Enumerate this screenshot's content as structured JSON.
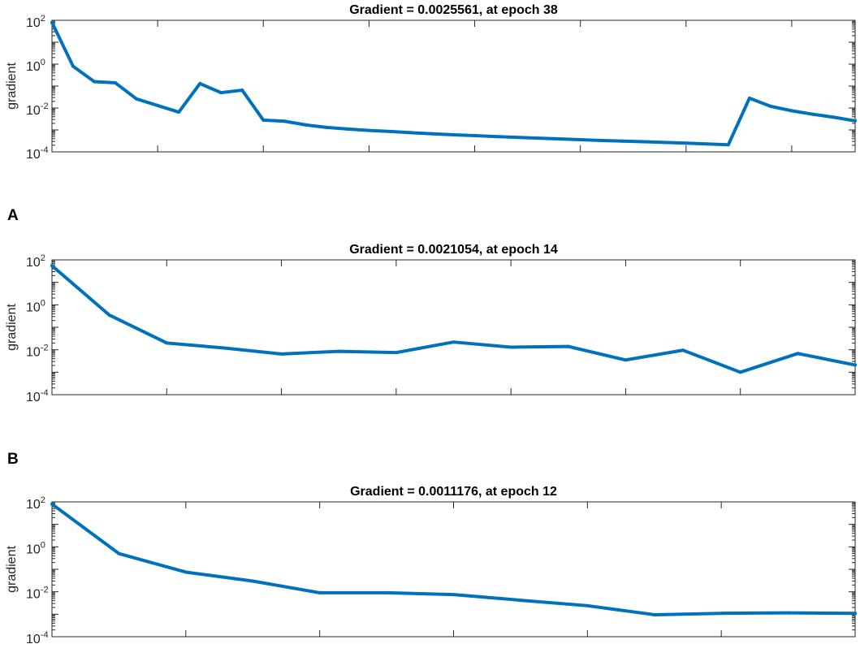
{
  "panel_labels": [
    "A",
    "B"
  ],
  "colors": {
    "line": "#0072bd",
    "axis": "#262626",
    "background": "#ffffff"
  },
  "chart_data": [
    {
      "type": "line",
      "title": "Gradient = 0.0025561, at epoch 38",
      "xlabel": "",
      "ylabel": "gradient",
      "y_scale": "log",
      "xlim": [
        0,
        38
      ],
      "ylim": [
        0.0001,
        100
      ],
      "yticks": [
        {
          "base": "10",
          "exp": "2"
        },
        {
          "base": "10",
          "exp": "0"
        },
        {
          "base": "10",
          "exp": "-2"
        },
        {
          "base": "10",
          "exp": "-4"
        }
      ],
      "x_major_ticks": [
        0,
        5,
        10,
        15,
        20,
        25,
        30,
        35
      ],
      "grid": false,
      "series": [
        {
          "x": [
            0,
            1,
            2,
            3,
            4,
            5,
            6,
            7,
            8,
            9,
            10,
            11,
            12,
            13,
            14,
            15,
            16,
            17,
            18,
            19,
            20,
            21,
            22,
            23,
            24,
            25,
            26,
            27,
            28,
            29,
            30,
            31,
            32,
            33,
            34,
            35,
            36,
            37,
            38
          ],
          "y": [
            80,
            0.8,
            0.16,
            0.14,
            0.026,
            0.013,
            0.0065,
            0.13,
            0.05,
            0.065,
            0.0028,
            0.0025,
            0.0017,
            0.0013,
            0.0011,
            0.00095,
            0.00085,
            0.00075,
            0.00067,
            0.0006,
            0.00055,
            0.0005,
            0.00046,
            0.00042,
            0.00039,
            0.00036,
            0.00033,
            0.00031,
            0.00029,
            0.00027,
            0.00025,
            0.00023,
            0.00021,
            0.028,
            0.012,
            0.0075,
            0.0052,
            0.0038,
            0.0026
          ]
        }
      ]
    },
    {
      "type": "line",
      "title": "Gradient = 0.0021054, at epoch 14",
      "xlabel": "",
      "ylabel": "gradient",
      "y_scale": "log",
      "xlim": [
        0,
        14
      ],
      "ylim": [
        0.0001,
        100
      ],
      "yticks": [
        {
          "base": "10",
          "exp": "2"
        },
        {
          "base": "10",
          "exp": "0"
        },
        {
          "base": "10",
          "exp": "-2"
        },
        {
          "base": "10",
          "exp": "-4"
        }
      ],
      "x_major_ticks": [
        0,
        2,
        4,
        6,
        8,
        10,
        12,
        14
      ],
      "grid": false,
      "series": [
        {
          "x": [
            0,
            1,
            2,
            3,
            4,
            5,
            6,
            7,
            8,
            9,
            10,
            11,
            12,
            13,
            14
          ],
          "y": [
            55,
            0.35,
            0.02,
            0.012,
            0.0065,
            0.0085,
            0.0075,
            0.022,
            0.013,
            0.014,
            0.0035,
            0.0095,
            0.001,
            0.0068,
            0.0021
          ]
        }
      ]
    },
    {
      "type": "line",
      "title": "Gradient = 0.0011176, at epoch 12",
      "xlabel": "",
      "ylabel": "gradient",
      "y_scale": "log",
      "xlim": [
        0,
        12
      ],
      "ylim": [
        0.0001,
        100
      ],
      "yticks": [
        {
          "base": "10",
          "exp": "2"
        },
        {
          "base": "10",
          "exp": "0"
        },
        {
          "base": "10",
          "exp": "-2"
        },
        {
          "base": "10",
          "exp": "-4"
        }
      ],
      "x_major_ticks": [
        0,
        2,
        4,
        6,
        8,
        10,
        12
      ],
      "grid": false,
      "series": [
        {
          "x": [
            0,
            1,
            2,
            3,
            4,
            5,
            6,
            7,
            8,
            9,
            10,
            11,
            12
          ],
          "y": [
            80,
            0.5,
            0.075,
            0.03,
            0.009,
            0.009,
            0.0075,
            0.0042,
            0.0024,
            0.00095,
            0.0011,
            0.00115,
            0.0011
          ]
        }
      ]
    }
  ]
}
